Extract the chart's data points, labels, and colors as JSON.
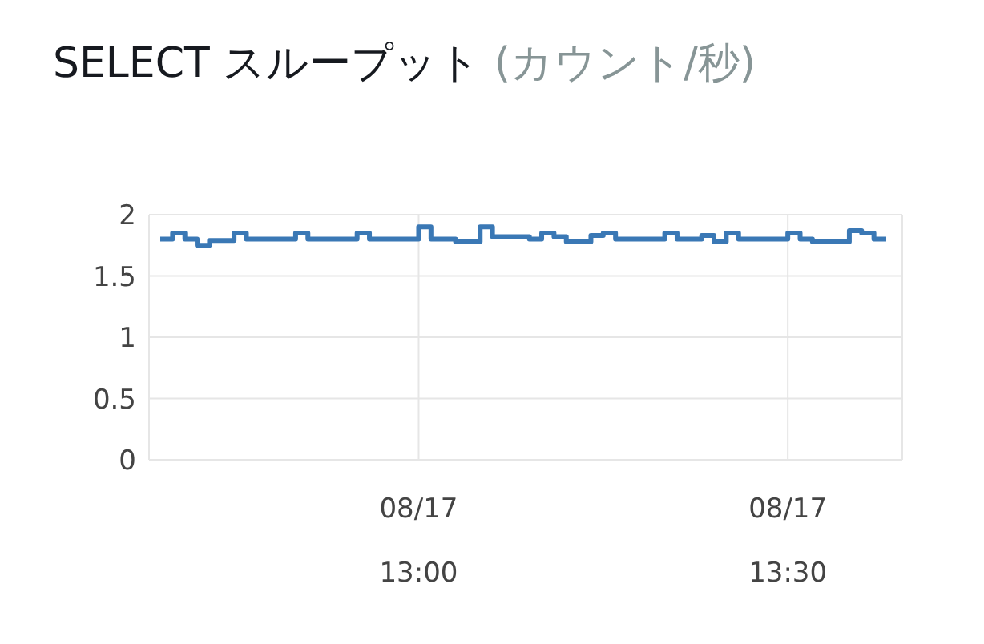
{
  "chart_data": {
    "type": "step",
    "title": "SELECT スループット",
    "subtitle": "(カウント/秒)",
    "categories": [
      null,
      null,
      null,
      null,
      null,
      null,
      null,
      null,
      null,
      null,
      null,
      null,
      null,
      null,
      null,
      null,
      null,
      null,
      null,
      null,
      null,
      "08/17\n13:00",
      null,
      null,
      null,
      null,
      null,
      null,
      null,
      null,
      null,
      null,
      null,
      null,
      null,
      null,
      null,
      null,
      null,
      null,
      null,
      null,
      null,
      null,
      null,
      null,
      null,
      null,
      null,
      null,
      null,
      "08/17\n13:30",
      null,
      null,
      null,
      null,
      null,
      null,
      null,
      null
    ],
    "series": [
      {
        "color": "#3a78b5",
        "values": [
          1.8,
          1.85,
          1.8,
          1.75,
          1.79,
          1.79,
          1.85,
          1.8,
          1.8,
          1.8,
          1.8,
          1.85,
          1.8,
          1.8,
          1.8,
          1.8,
          1.85,
          1.8,
          1.8,
          1.8,
          1.8,
          1.9,
          1.8,
          1.8,
          1.78,
          1.78,
          1.9,
          1.82,
          1.82,
          1.82,
          1.8,
          1.85,
          1.82,
          1.78,
          1.78,
          1.83,
          1.85,
          1.8,
          1.8,
          1.8,
          1.8,
          1.85,
          1.8,
          1.8,
          1.83,
          1.78,
          1.85,
          1.8,
          1.8,
          1.8,
          1.8,
          1.85,
          1.8,
          1.78,
          1.78,
          1.78,
          1.87,
          1.85,
          1.8,
          1.8
        ]
      }
    ],
    "ylim": [
      0,
      2
    ],
    "yticks": [
      0,
      0.5,
      1,
      1.5,
      2
    ],
    "grid": true,
    "legend": false,
    "marker": "none",
    "line_style": "solid"
  }
}
